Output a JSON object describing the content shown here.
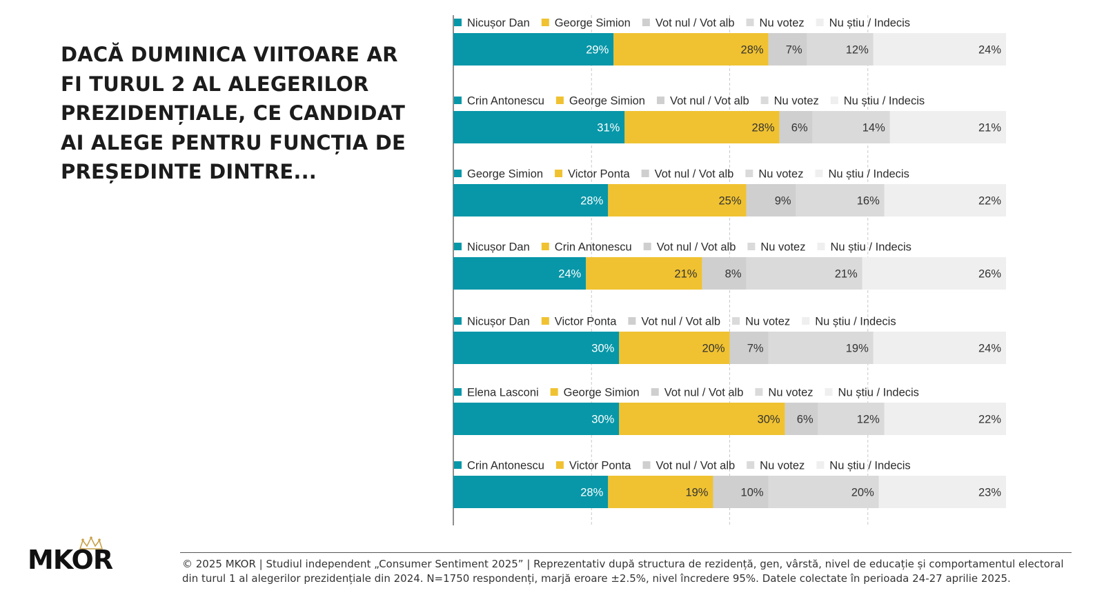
{
  "headline": "DACĂ DUMINICA VIITOARE AR FI TURUL 2 AL ALEGERILOR PREZIDENȚIALE, CE CANDIDAT AI ALEGE PENTRU FUNCȚIA DE PREȘEDINTE DINTRE...",
  "brand": {
    "name": "MKOR"
  },
  "footer": {
    "text": "© 2025 MKOR | Studiul independent „Consumer Sentiment 2025” | Reprezentativ după structura de rezidență, gen, vârstă, nivel de educație și comportamentul electoral din turul 1 al alegerilor prezidențiale din 2024. N=1750 respondenți, marjă eroare ±2.5%, nivel încredere 95%. Datele colectate în perioada 24-27 aprilie 2025."
  },
  "colors": {
    "candidate_a": "#0797a8",
    "candidate_b": "#f0c231",
    "vot_nul": "#cfcfcf",
    "nu_votez": "#dadada",
    "nu_stiu": "#efefef",
    "label_on_dark": "#ffffff",
    "label_on_light": "#333333"
  },
  "chart_data": {
    "type": "bar",
    "orientation": "horizontal",
    "stacked": true,
    "xlim": [
      0,
      100
    ],
    "grid": true,
    "legend_position": "top",
    "value_suffix": "%",
    "charts": [
      {
        "series": [
          "Nicușor Dan",
          "George Simion",
          "Vot nul / Vot alb",
          "Nu votez",
          "Nu știu / Indecis"
        ],
        "values": [
          29,
          28,
          7,
          12,
          24
        ]
      },
      {
        "series": [
          "Crin Antonescu",
          "George Simion",
          "Vot nul / Vot alb",
          "Nu votez",
          "Nu știu / Indecis"
        ],
        "values": [
          31,
          28,
          6,
          14,
          21
        ]
      },
      {
        "series": [
          "George Simion",
          "Victor Ponta",
          "Vot nul / Vot alb",
          "Nu votez",
          "Nu știu / Indecis"
        ],
        "values": [
          28,
          25,
          9,
          16,
          22
        ]
      },
      {
        "series": [
          "Nicușor Dan",
          "Crin Antonescu",
          "Vot nul / Vot alb",
          "Nu votez",
          "Nu știu / Indecis"
        ],
        "values": [
          24,
          21,
          8,
          21,
          26
        ]
      },
      {
        "series": [
          "Nicușor Dan",
          "Victor Ponta",
          "Vot nul / Vot alb",
          "Nu votez",
          "Nu știu / Indecis"
        ],
        "values": [
          30,
          20,
          7,
          19,
          24
        ]
      },
      {
        "series": [
          "Elena Lasconi",
          "George Simion",
          "Vot nul / Vot alb",
          "Nu votez",
          "Nu știu / Indecis"
        ],
        "values": [
          30,
          30,
          6,
          12,
          22
        ]
      },
      {
        "series": [
          "Crin Antonescu",
          "Victor Ponta",
          "Vot nul / Vot alb",
          "Nu votez",
          "Nu știu / Indecis"
        ],
        "values": [
          28,
          19,
          10,
          20,
          23
        ]
      }
    ]
  }
}
